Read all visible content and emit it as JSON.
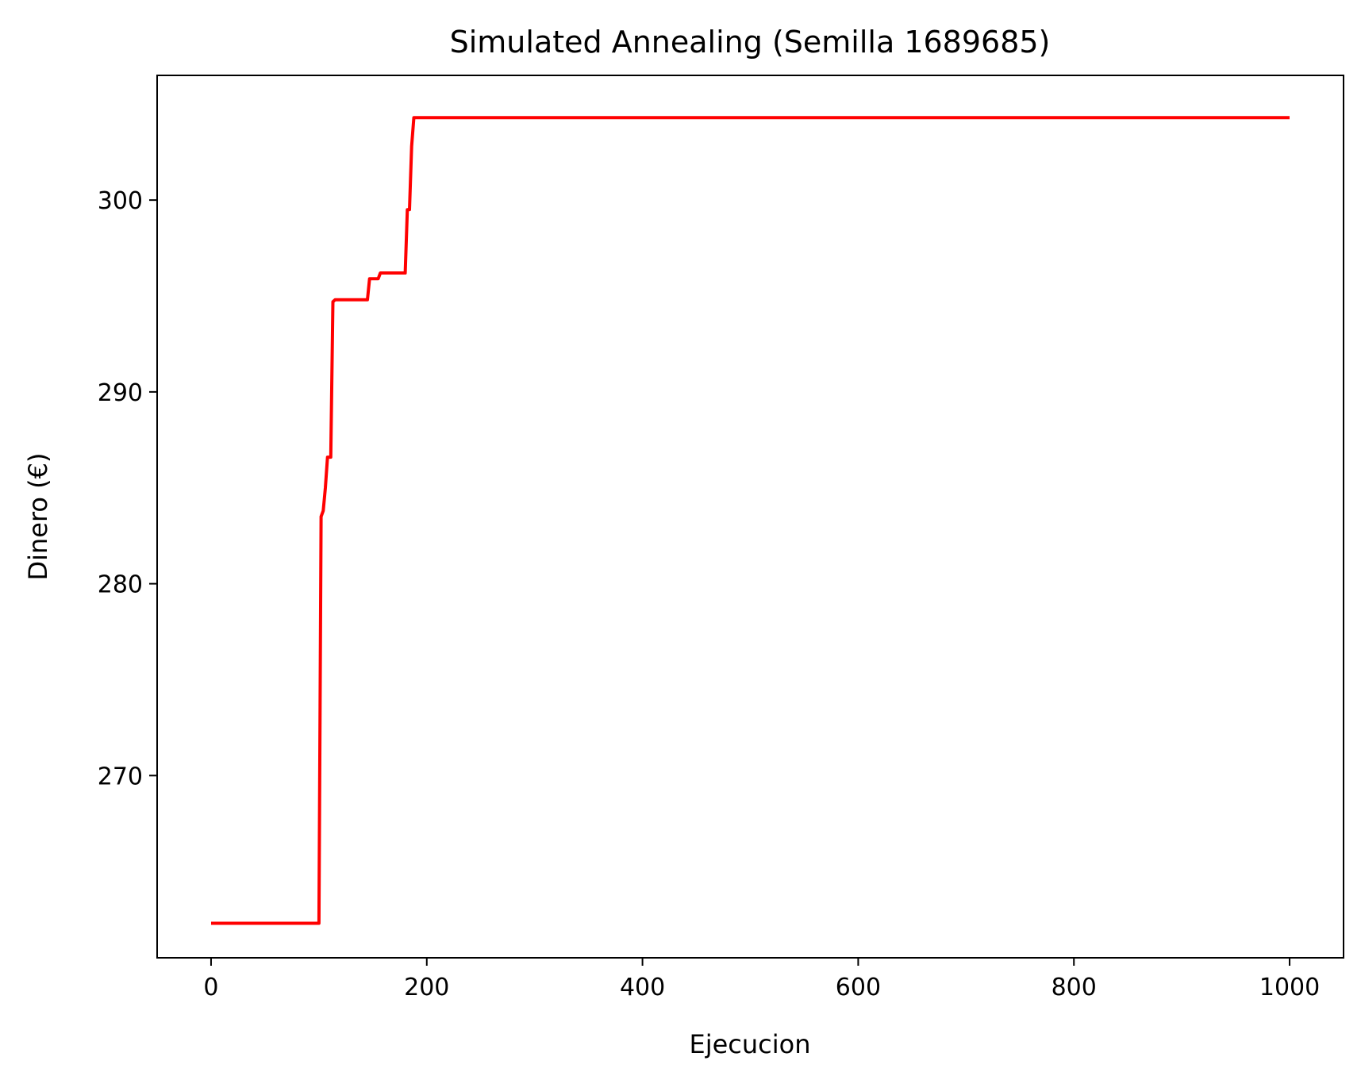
{
  "chart_data": {
    "type": "line",
    "title": "Simulated Annealing (Semilla 1689685)",
    "xlabel": "Ejecucion",
    "ylabel": "Dinero (€)",
    "xlim": [
      -50,
      1050
    ],
    "ylim": [
      260.5,
      306.5
    ],
    "xticks": [
      0,
      200,
      400,
      600,
      800,
      1000
    ],
    "yticks": [
      270,
      280,
      290,
      300
    ],
    "grid": false,
    "legend": "none",
    "series": [
      {
        "color": "#ff0000",
        "x": [
          0,
          100,
          102,
          104,
          106,
          108,
          111,
          113,
          115,
          145,
          147,
          155,
          157,
          180,
          182,
          184,
          186,
          188,
          1000
        ],
        "y": [
          262.3,
          262.3,
          283.5,
          283.8,
          285.0,
          286.6,
          286.6,
          294.7,
          294.8,
          294.8,
          295.9,
          295.9,
          296.2,
          296.2,
          299.5,
          299.5,
          302.8,
          304.3,
          304.3
        ]
      }
    ]
  }
}
